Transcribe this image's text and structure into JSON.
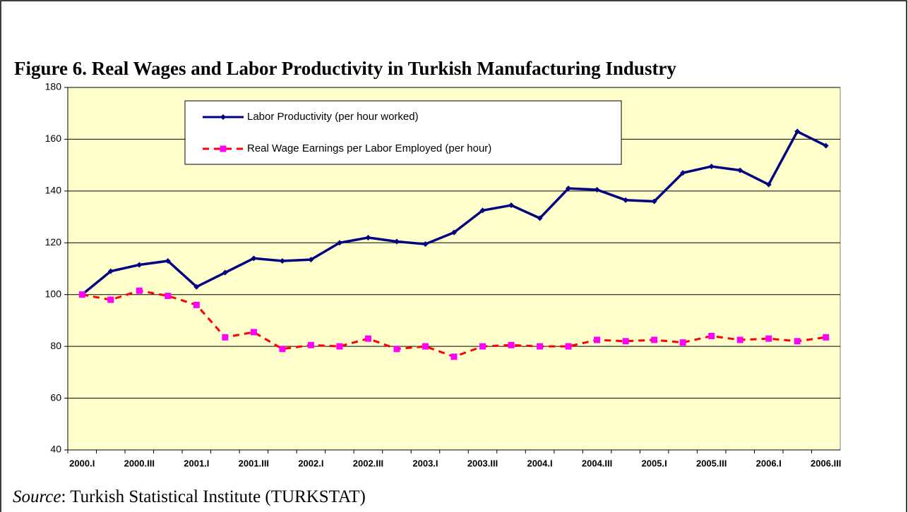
{
  "chart_data": {
    "type": "line",
    "title": "Figure 6. Real Wages and Labor Productivity in Turkish Manufacturing Industry",
    "source_label": "Source",
    "source_text": ": Turkish Statistical Institute (TURKSTAT)",
    "categories": [
      "2000.I",
      null,
      "2000.III",
      null,
      "2001.I",
      null,
      "2001.III",
      null,
      "2002.I",
      null,
      "2002.III",
      null,
      "2003.I",
      null,
      "2003.III",
      null,
      "2004.I",
      null,
      "2004.III",
      null,
      "2005.I",
      null,
      "2005.III",
      null,
      "2006.I",
      null,
      "2006.III"
    ],
    "series": [
      {
        "name": "Labor Productivity (per hour worked)",
        "color": "#000080",
        "marker": "diamond",
        "dashed": false,
        "values": [
          100,
          109,
          111.5,
          113,
          103,
          108.5,
          114,
          113,
          113.5,
          120,
          122,
          120.5,
          119.5,
          124,
          132.5,
          134.5,
          129.5,
          141,
          140.5,
          136.5,
          136,
          147,
          149.5,
          148,
          142.5,
          163,
          157.5
        ]
      },
      {
        "name": "Real Wage Earnings per Labor Employed (per hour)",
        "color": "#ff0000",
        "marker_color": "#ff00ff",
        "marker": "square",
        "dashed": true,
        "values": [
          100,
          98,
          101.5,
          99.5,
          96,
          83.5,
          85.5,
          79,
          80.5,
          80,
          83,
          79,
          80,
          76,
          80,
          80.5,
          80,
          80,
          82.5,
          82,
          82.5,
          81.5,
          84,
          82.5,
          83,
          82,
          83.5
        ]
      }
    ],
    "ylim": [
      40,
      180
    ],
    "yticks": [
      40,
      60,
      80,
      100,
      120,
      140,
      160,
      180
    ],
    "grid": true,
    "plot_background": "#ffffcc"
  }
}
